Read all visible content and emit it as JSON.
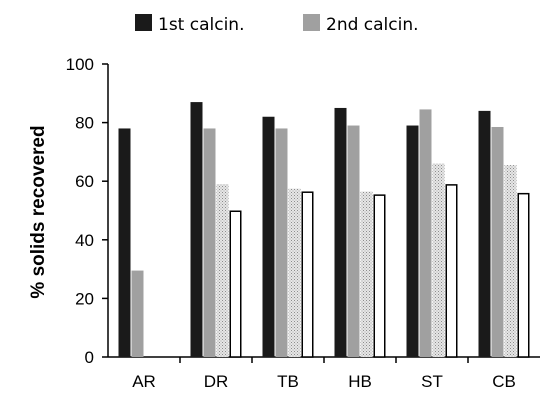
{
  "chart_data": {
    "type": "bar",
    "categories": [
      "AR",
      "DR",
      "TB",
      "HB",
      "ST",
      "CB"
    ],
    "series": [
      {
        "name": "1st calcin.",
        "values": [
          78,
          87,
          82,
          85,
          79,
          84
        ],
        "color": "#1a1a1a",
        "pattern": "solid"
      },
      {
        "name": "2nd calcin.",
        "values": [
          29.5,
          78,
          78,
          79,
          84.5,
          78.5
        ],
        "color": "#a0a0a0",
        "pattern": "solid"
      },
      {
        "values": [
          null,
          59,
          57.5,
          56.5,
          66,
          65.5
        ],
        "color": "#d9d9d9",
        "pattern": "dotted"
      },
      {
        "values": [
          null,
          50,
          56.5,
          55.5,
          59,
          56
        ],
        "color": "#ffffff",
        "pattern": "outline"
      }
    ],
    "ylabel": "% solids recovered",
    "ylim": [
      0,
      100
    ],
    "yticks": [
      0,
      20,
      40,
      60,
      80,
      100
    ],
    "legend": {
      "placement": "top",
      "entries": [
        "1st calcin.",
        "2nd calcin."
      ]
    },
    "grid": false
  }
}
